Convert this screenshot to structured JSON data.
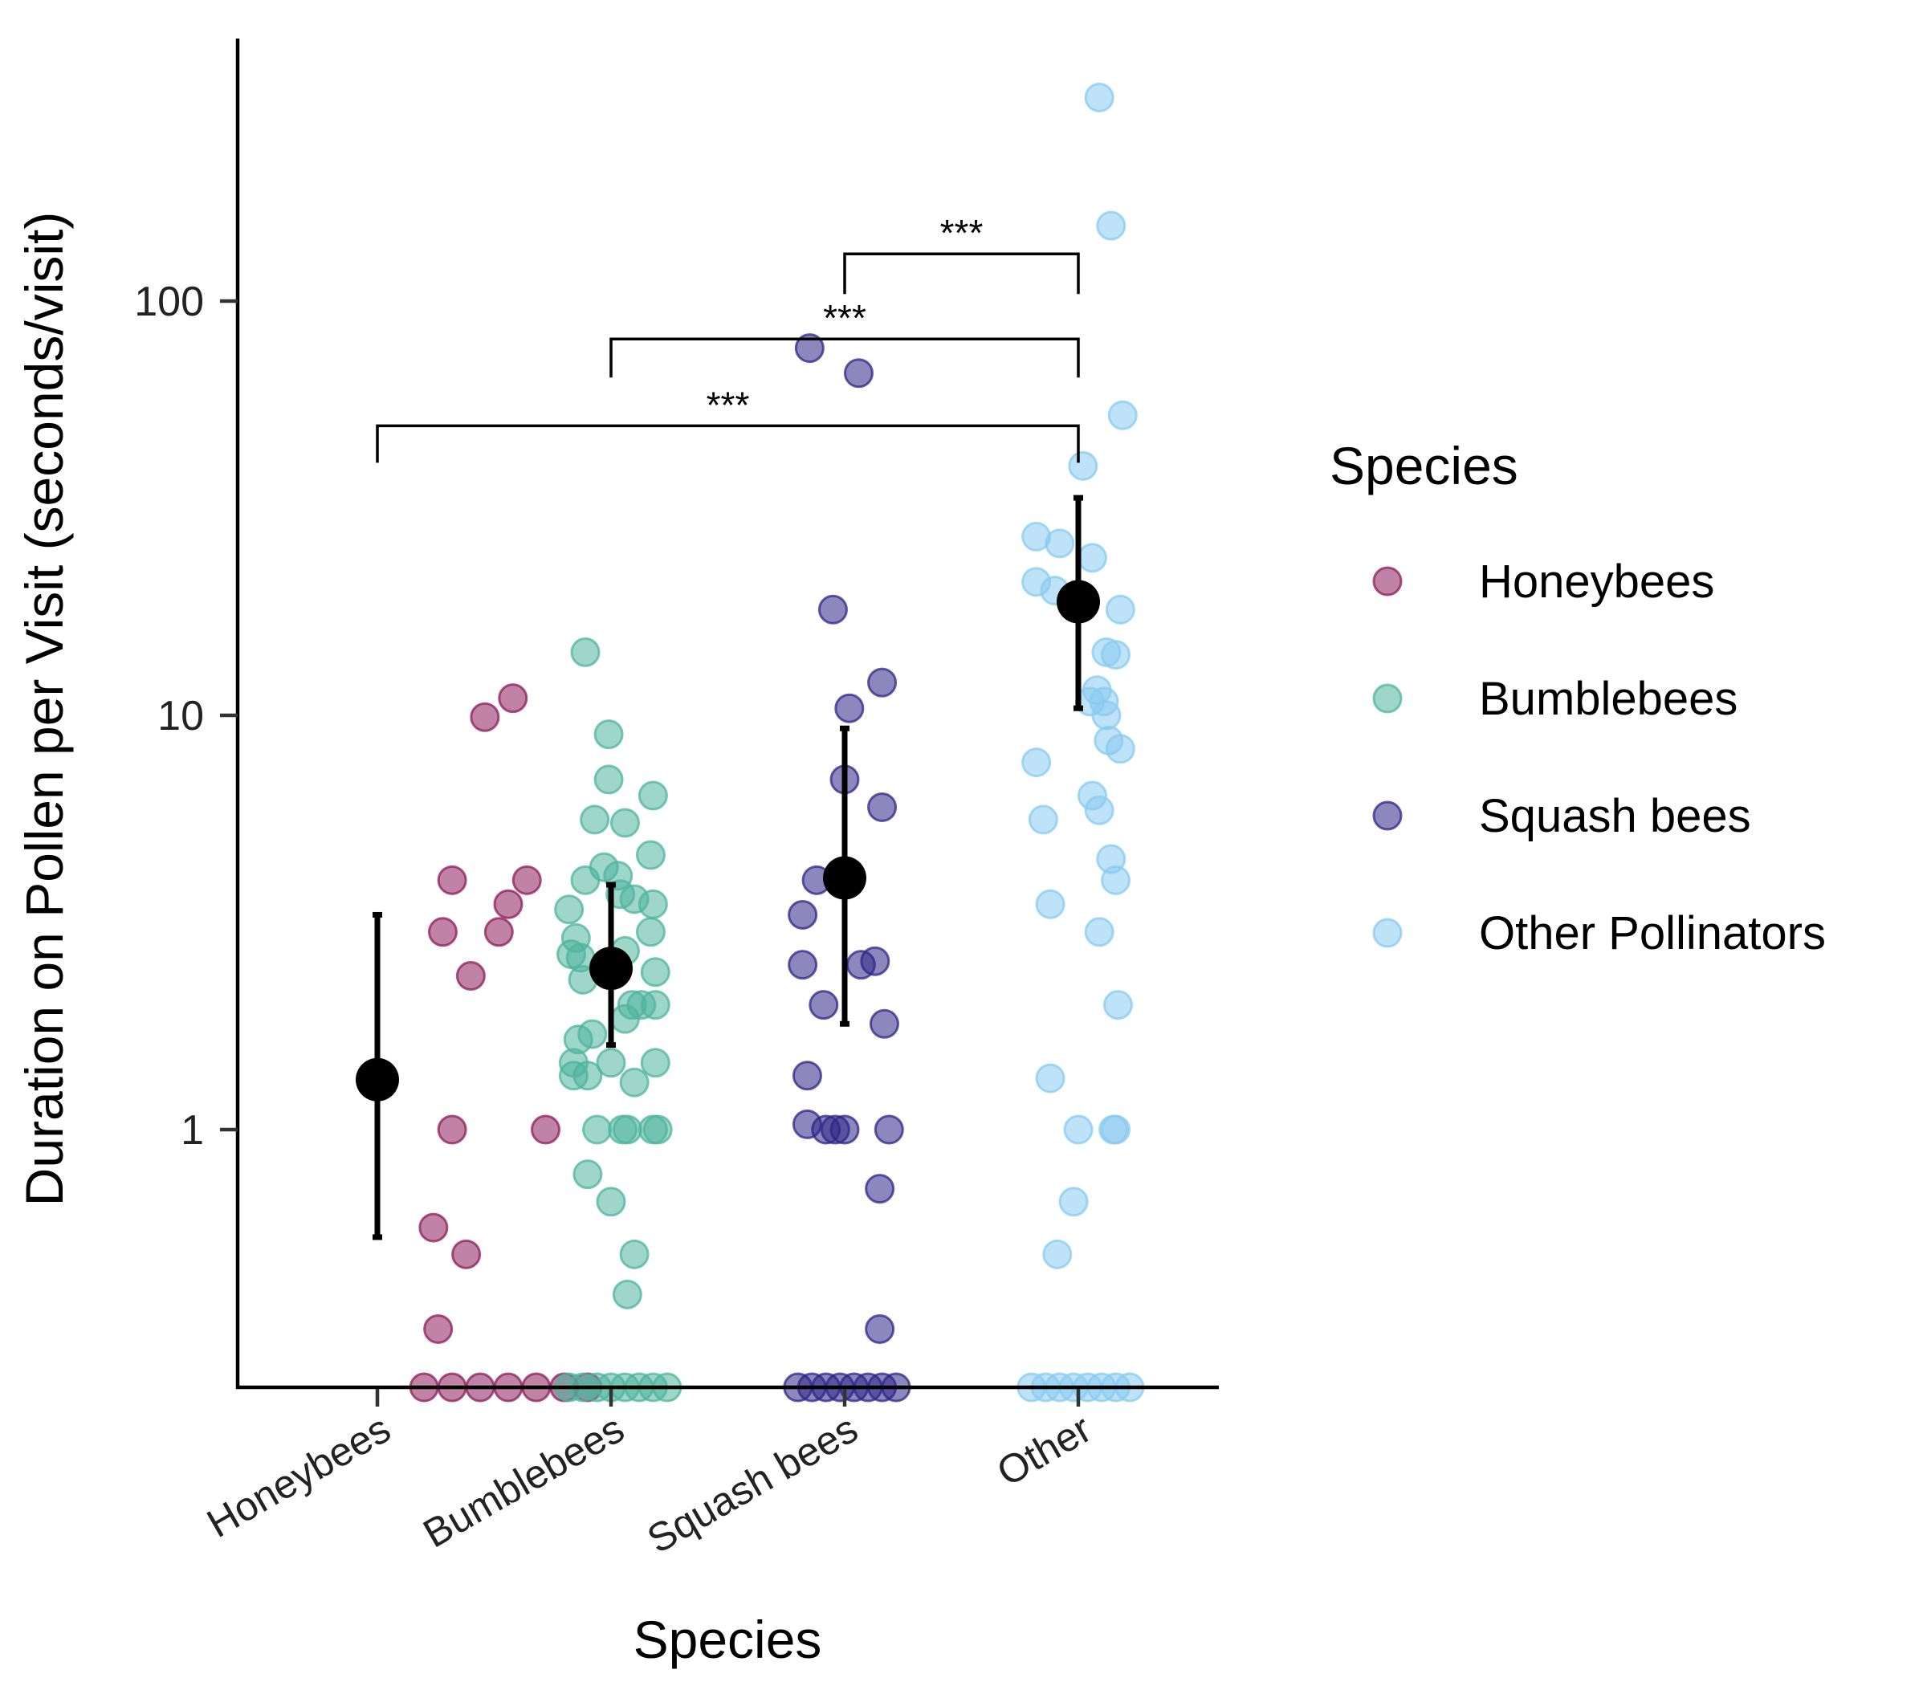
{
  "chart_data": {
    "type": "scatter",
    "variant": "jittered strip plot with mean and error bars",
    "title": "",
    "xlabel": "Species",
    "ylabel": "Duration on Pollen per Visit (seconds/visit)",
    "y_scale": "log10",
    "ylim": [
      0.25,
      400
    ],
    "yticks": [
      1,
      10,
      100
    ],
    "ytick_labels": [
      "1",
      "10",
      "100"
    ],
    "categories": [
      "Honeybees",
      "Bumblebees",
      "Squash bees",
      "Other"
    ],
    "grid": false,
    "legend": {
      "title": "Species",
      "placement": "right",
      "entries": [
        "Honeybees",
        "Bumblebees",
        "Squash bees",
        "Other Pollinators"
      ]
    },
    "colors": {
      "Honeybees": "#8c1c5b",
      "Bumblebees": "#4fb49c",
      "Squash bees": "#2e2687",
      "Other Pollinators": "#88cbf0",
      "mean": "#000000"
    },
    "series": [
      {
        "name": "Honeybees",
        "category": "Honeybees",
        "points": [
          [
            0.79,
            11
          ],
          [
            0.73,
            9.9
          ],
          [
            0.66,
            4
          ],
          [
            0.78,
            3.5
          ],
          [
            0.82,
            4
          ],
          [
            0.64,
            3
          ],
          [
            0.76,
            3
          ],
          [
            0.7,
            2.35
          ],
          [
            0.66,
            1
          ],
          [
            0.86,
            1
          ],
          [
            0.62,
            0.58
          ],
          [
            0.69,
            0.5
          ],
          [
            0.63,
            0.33
          ],
          [
            0.6,
            0.25
          ],
          [
            0.66,
            0.25
          ],
          [
            0.72,
            0.25
          ],
          [
            0.78,
            0.25
          ],
          [
            0.84,
            0.25
          ],
          [
            0.9,
            0.25
          ],
          [
            0.95,
            0.25
          ]
        ],
        "mean": 1.32,
        "err_low": 0.55,
        "err_high": 3.3
      },
      {
        "name": "Bumblebees",
        "category": "Bumblebees",
        "points": [
          [
            1.89,
            14.2
          ],
          [
            1.99,
            9
          ],
          [
            1.99,
            7
          ],
          [
            2.18,
            6.4
          ],
          [
            1.93,
            5.6
          ],
          [
            2.06,
            5.5
          ],
          [
            2.17,
            4.6
          ],
          [
            1.89,
            4
          ],
          [
            1.97,
            4.3
          ],
          [
            2.03,
            4.1
          ],
          [
            1.82,
            3.4
          ],
          [
            2.1,
            3.6
          ],
          [
            2.18,
            3.5
          ],
          [
            2.04,
            3.7
          ],
          [
            1.85,
            2.9
          ],
          [
            1.87,
            2.6
          ],
          [
            1.88,
            2.3
          ],
          [
            1.83,
            2.65
          ],
          [
            2.17,
            3
          ],
          [
            2.19,
            2.4
          ],
          [
            2.06,
            2.7
          ],
          [
            2.09,
            2
          ],
          [
            2.13,
            2
          ],
          [
            2.19,
            2
          ],
          [
            1.86,
            1.65
          ],
          [
            1.92,
            1.7
          ],
          [
            2.06,
            1.85
          ],
          [
            1.84,
            1.45
          ],
          [
            1.84,
            1.35
          ],
          [
            1.9,
            1.35
          ],
          [
            2.0,
            1.45
          ],
          [
            2.19,
            1.45
          ],
          [
            2.1,
            1.3
          ],
          [
            1.94,
            1
          ],
          [
            2.05,
            1
          ],
          [
            2.07,
            1
          ],
          [
            2.18,
            1
          ],
          [
            2.2,
            1
          ],
          [
            1.9,
            0.78
          ],
          [
            2.0,
            0.67
          ],
          [
            2.1,
            0.5
          ],
          [
            2.07,
            0.4
          ],
          [
            1.82,
            0.25
          ],
          [
            1.88,
            0.25
          ],
          [
            1.94,
            0.25
          ],
          [
            2.0,
            0.25
          ],
          [
            2.06,
            0.25
          ],
          [
            2.12,
            0.25
          ],
          [
            2.18,
            0.25
          ],
          [
            2.24,
            0.25
          ]
        ],
        "mean": 2.45,
        "err_low": 1.6,
        "err_high": 3.9
      },
      {
        "name": "Squash bees",
        "category": "Squash bees",
        "points": [
          [
            2.85,
            77
          ],
          [
            3.06,
            67
          ],
          [
            2.95,
            18
          ],
          [
            3.16,
            12
          ],
          [
            3.02,
            10.4
          ],
          [
            3.0,
            7
          ],
          [
            3.16,
            6
          ],
          [
            2.88,
            4
          ],
          [
            2.82,
            3.3
          ],
          [
            2.82,
            2.5
          ],
          [
            3.07,
            2.5
          ],
          [
            3.13,
            2.55
          ],
          [
            2.91,
            2
          ],
          [
            3.17,
            1.8
          ],
          [
            2.84,
            1.35
          ],
          [
            2.84,
            1.03
          ],
          [
            2.92,
            1
          ],
          [
            2.96,
            1
          ],
          [
            3.0,
            1
          ],
          [
            3.19,
            1
          ],
          [
            3.15,
            0.72
          ],
          [
            3.15,
            0.33
          ],
          [
            2.8,
            0.25
          ],
          [
            2.86,
            0.25
          ],
          [
            2.92,
            0.25
          ],
          [
            2.98,
            0.25
          ],
          [
            3.04,
            0.25
          ],
          [
            3.1,
            0.25
          ],
          [
            3.16,
            0.25
          ],
          [
            3.22,
            0.25
          ]
        ],
        "mean": 4.05,
        "err_low": 1.8,
        "err_high": 9.3
      },
      {
        "name": "Other Pollinators",
        "category": "Other",
        "points": [
          [
            4.09,
            310
          ],
          [
            4.14,
            152
          ],
          [
            4.19,
            53
          ],
          [
            4.02,
            40
          ],
          [
            3.82,
            27
          ],
          [
            3.92,
            26
          ],
          [
            4.06,
            24
          ],
          [
            3.82,
            21
          ],
          [
            3.9,
            20
          ],
          [
            4.18,
            18
          ],
          [
            4.12,
            14.2
          ],
          [
            4.16,
            14
          ],
          [
            4.08,
            11.5
          ],
          [
            4.05,
            10.8
          ],
          [
            4.11,
            10.8
          ],
          [
            4.12,
            10
          ],
          [
            4.13,
            8.7
          ],
          [
            4.18,
            8.3
          ],
          [
            3.82,
            7.7
          ],
          [
            4.06,
            6.4
          ],
          [
            4.09,
            5.9
          ],
          [
            3.85,
            5.6
          ],
          [
            4.14,
            4.5
          ],
          [
            4.16,
            4
          ],
          [
            3.88,
            3.5
          ],
          [
            4.09,
            3
          ],
          [
            4.17,
            2
          ],
          [
            3.88,
            1.33
          ],
          [
            4.0,
            1
          ],
          [
            4.15,
            1
          ],
          [
            4.16,
            1
          ],
          [
            3.98,
            0.67
          ],
          [
            3.91,
            0.5
          ],
          [
            3.8,
            0.25
          ],
          [
            3.86,
            0.25
          ],
          [
            3.92,
            0.25
          ],
          [
            3.98,
            0.25
          ],
          [
            4.04,
            0.25
          ],
          [
            4.1,
            0.25
          ],
          [
            4.16,
            0.25
          ],
          [
            4.22,
            0.25
          ]
        ],
        "mean": 18.8,
        "err_low": 10.4,
        "err_high": 33.5
      }
    ],
    "significance": [
      {
        "from": "Squash bees",
        "to": "Other",
        "label": "***",
        "y": 130
      },
      {
        "from": "Bumblebees",
        "to": "Other",
        "label": "***",
        "y": 81
      },
      {
        "from": "Honeybees",
        "to": "Other",
        "label": "***",
        "y": 50
      }
    ]
  }
}
